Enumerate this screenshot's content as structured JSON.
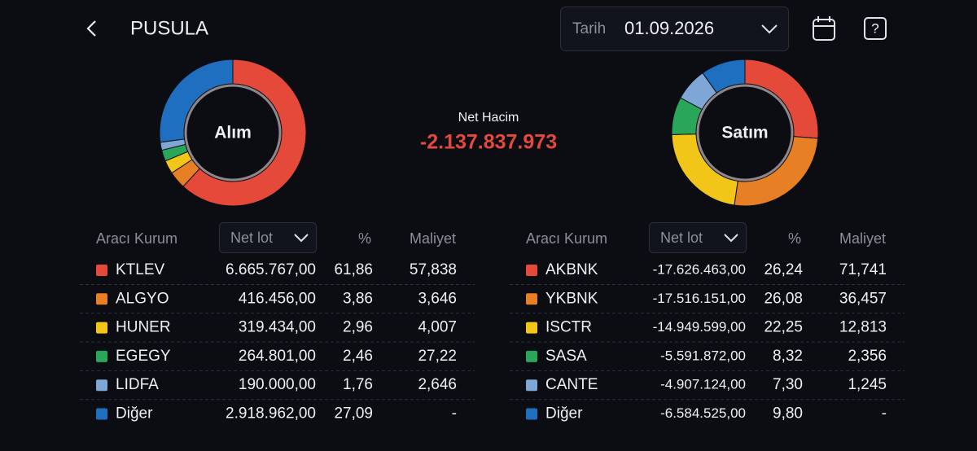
{
  "header": {
    "title": "PUSULA",
    "date_label": "Tarih",
    "date": "01.09.2026"
  },
  "net_volume": {
    "label": "Net Hacim",
    "value": "-2.137.837.973"
  },
  "sides": [
    {
      "title": "Alım",
      "donut": {
        "type": "pie",
        "values": [
          61.86,
          3.86,
          2.96,
          2.46,
          1.76,
          27.09
        ],
        "value_labels": [
          "61,86",
          "3,86",
          "2,96",
          "2,46",
          "1,76",
          "27,09"
        ],
        "colors": [
          "#e5493a",
          "#e77f24",
          "#f2c618",
          "#2aa65a",
          "#7ea6d6",
          "#1e6fbf"
        ]
      },
      "table": {
        "headers": [
          "Aracı Kurum",
          "Net lot",
          "%",
          "Maliyet"
        ],
        "rows": [
          [
            "KTLEV",
            "6.665.767,00",
            "57,838"
          ],
          [
            "ALGYO",
            "416.456,00",
            "3,646"
          ],
          [
            "HUNER",
            "319.434,00",
            "4,007"
          ],
          [
            "EGEGY",
            "264.801,00",
            "27,22"
          ],
          [
            "LIDFA",
            "190.000,00",
            "2,646"
          ],
          [
            "Diğer",
            "2.918.962,00",
            "-"
          ]
        ]
      }
    },
    {
      "title": "Satım",
      "donut": {
        "type": "pie",
        "values": [
          26.24,
          26.08,
          22.25,
          8.32,
          7.3,
          9.8
        ],
        "value_labels": [
          "26,24",
          "26,08",
          "22,25",
          "8,32",
          "7,30",
          "9,80"
        ],
        "colors": [
          "#e5493a",
          "#e77f24",
          "#f2c618",
          "#2aa65a",
          "#7ea6d6",
          "#1e6fbf"
        ]
      },
      "table": {
        "headers": [
          "Aracı Kurum",
          "Net lot",
          "%",
          "Maliyet"
        ],
        "rows": [
          [
            "AKBNK",
            "-17.626.463,00",
            "71,741"
          ],
          [
            "YKBNK",
            "-17.516.151,00",
            "36,457"
          ],
          [
            "ISCTR",
            "-14.949.599,00",
            "12,813"
          ],
          [
            "SASA",
            "-5.591.872,00",
            "2,356"
          ],
          [
            "CANTE",
            "-4.907.124,00",
            "1,245"
          ],
          [
            "Diğer",
            "-6.584.525,00",
            "-"
          ]
        ]
      }
    }
  ]
}
